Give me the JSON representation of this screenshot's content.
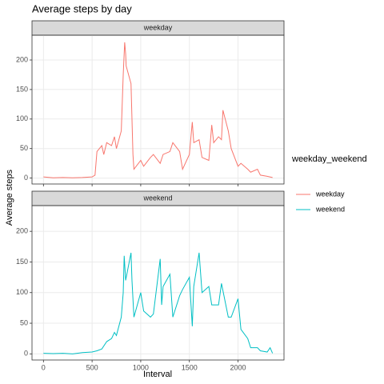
{
  "chart_data": {
    "type": "line",
    "title": "Average steps by day",
    "x_label": "Interval",
    "y_label": "Average steps",
    "legend_title": "weekday_weekend",
    "legend": "right",
    "grid": true,
    "xlim": [
      -117.75,
      2472.75
    ],
    "ylim": [
      -10,
      242
    ],
    "xticks": [
      0,
      500,
      1000,
      1500,
      2000
    ],
    "yticks": [
      0,
      50,
      100,
      150,
      200
    ],
    "series": [
      {
        "name": "weekday",
        "color": "#F8766D",
        "x": [
          0,
          100,
          200,
          300,
          400,
          500,
          530,
          550,
          600,
          620,
          650,
          700,
          730,
          750,
          800,
          820,
          835,
          845,
          850,
          900,
          910,
          920,
          930,
          1000,
          1030,
          1100,
          1130,
          1200,
          1230,
          1300,
          1330,
          1400,
          1430,
          1500,
          1530,
          1545,
          1600,
          1630,
          1700,
          1730,
          1750,
          1800,
          1830,
          1845,
          1900,
          1930,
          2000,
          2030,
          2100,
          2130,
          2200,
          2230,
          2300,
          2355
        ],
        "values": [
          2,
          0.5,
          1,
          0.5,
          1,
          2,
          5,
          45,
          55,
          40,
          60,
          55,
          70,
          50,
          80,
          175,
          230,
          210,
          190,
          160,
          100,
          40,
          15,
          30,
          20,
          35,
          40,
          25,
          40,
          45,
          60,
          45,
          15,
          40,
          95,
          60,
          65,
          35,
          30,
          90,
          60,
          70,
          65,
          115,
          80,
          50,
          20,
          25,
          15,
          10,
          15,
          5,
          3,
          1
        ]
      },
      {
        "name": "weekend",
        "color": "#00BFC4",
        "x": [
          0,
          100,
          200,
          300,
          400,
          500,
          550,
          600,
          650,
          700,
          730,
          750,
          800,
          820,
          830,
          845,
          900,
          910,
          930,
          1000,
          1030,
          1100,
          1130,
          1200,
          1215,
          1230,
          1300,
          1330,
          1400,
          1430,
          1500,
          1530,
          1545,
          1600,
          1630,
          1700,
          1730,
          1800,
          1830,
          1900,
          1930,
          2000,
          2030,
          2100,
          2130,
          2200,
          2230,
          2300,
          2330,
          2355
        ],
        "values": [
          1,
          0.5,
          1,
          0,
          2,
          3,
          5,
          8,
          20,
          25,
          35,
          30,
          60,
          100,
          160,
          120,
          165,
          120,
          60,
          100,
          70,
          60,
          65,
          155,
          80,
          110,
          130,
          60,
          95,
          105,
          125,
          45,
          110,
          165,
          100,
          110,
          80,
          80,
          115,
          60,
          60,
          90,
          40,
          25,
          10,
          10,
          5,
          3,
          10,
          1
        ]
      }
    ]
  }
}
